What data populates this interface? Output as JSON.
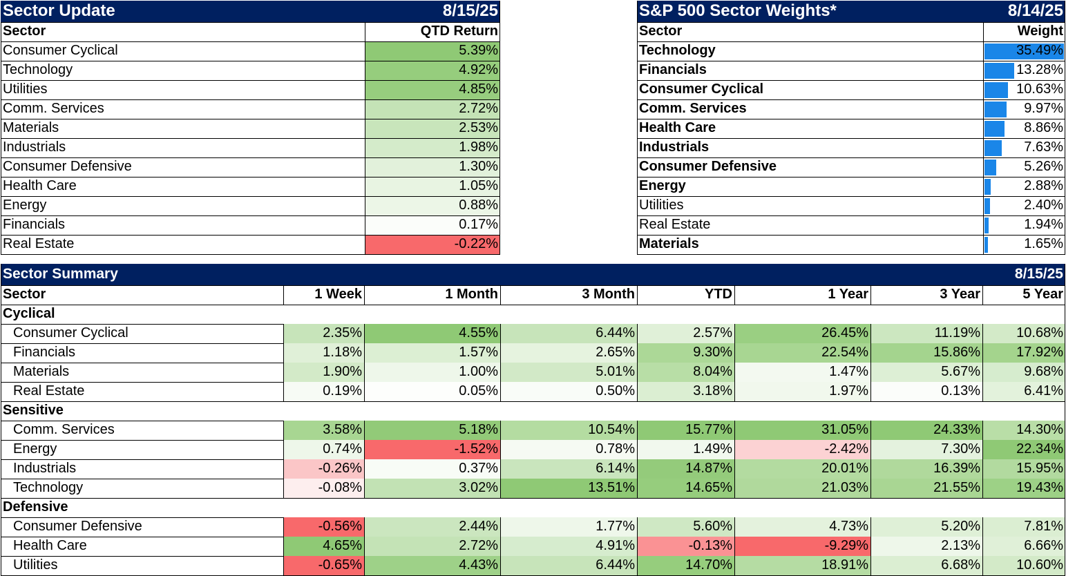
{
  "sector_update": {
    "title": "Sector Update",
    "date": "8/15/25",
    "col_sector": "Sector",
    "col_return": "QTD Return",
    "rows": [
      {
        "sector": "Consumer Cyclical",
        "value": "5.39%",
        "color": "#8fc975"
      },
      {
        "sector": "Technology",
        "value": "4.92%",
        "color": "#96cd7d"
      },
      {
        "sector": "Utilities",
        "value": "4.85%",
        "color": "#97cd7e"
      },
      {
        "sector": "Comm. Services",
        "value": "2.72%",
        "color": "#c4e3b6"
      },
      {
        "sector": "Materials",
        "value": "2.53%",
        "color": "#c8e5bb"
      },
      {
        "sector": "Industrials",
        "value": "1.98%",
        "color": "#d4ebca"
      },
      {
        "sector": "Consumer Defensive",
        "value": "1.30%",
        "color": "#e2f1db"
      },
      {
        "sector": "Health Care",
        "value": "1.05%",
        "color": "#e8f4e2"
      },
      {
        "sector": "Energy",
        "value": "0.88%",
        "color": "#ecf6e7"
      },
      {
        "sector": "Financials",
        "value": "0.17%",
        "color": "#fbfdfa"
      },
      {
        "sector": "Real Estate",
        "value": "-0.22%",
        "color": "#f8696b"
      }
    ]
  },
  "sector_weights": {
    "title": "S&P 500 Sector Weights*",
    "date": "8/14/25",
    "col_sector": "Sector",
    "col_weight": "Weight",
    "bar_color": "#1a86e8",
    "rows": [
      {
        "sector": "Technology",
        "value": "35.49%",
        "weight": 35.49,
        "bold": true
      },
      {
        "sector": "Financials",
        "value": "13.28%",
        "weight": 13.28,
        "bold": true
      },
      {
        "sector": "Consumer Cyclical",
        "value": "10.63%",
        "weight": 10.63,
        "bold": true
      },
      {
        "sector": "Comm. Services",
        "value": "9.97%",
        "weight": 9.97,
        "bold": true
      },
      {
        "sector": "Health Care",
        "value": "8.86%",
        "weight": 8.86,
        "bold": true
      },
      {
        "sector": "Industrials",
        "value": "7.63%",
        "weight": 7.63,
        "bold": true
      },
      {
        "sector": "Consumer Defensive",
        "value": "5.26%",
        "weight": 5.26,
        "bold": true
      },
      {
        "sector": "Energy",
        "value": "2.88%",
        "weight": 2.88,
        "bold": true
      },
      {
        "sector": "Utilities",
        "value": "2.40%",
        "weight": 2.4,
        "bold": false
      },
      {
        "sector": "Real Estate",
        "value": "1.94%",
        "weight": 1.94,
        "bold": false
      },
      {
        "sector": "Materials",
        "value": "1.65%",
        "weight": 1.65,
        "bold": true
      }
    ]
  },
  "sector_summary": {
    "title": "Sector Summary",
    "date": "8/15/25",
    "headers": [
      "Sector",
      "1 Week",
      "1 Month",
      "3 Month",
      "YTD",
      "1 Year",
      "3 Year",
      "5 Year"
    ],
    "groups": [
      {
        "name": "Cyclical",
        "rows": [
          {
            "sector": "Consumer Cyclical",
            "values": [
              "2.35%",
              "4.55%",
              "6.44%",
              "2.57%",
              "26.45%",
              "11.19%",
              "10.68%"
            ],
            "colors": [
              "#c7e4ba",
              "#8fc975",
              "#c7e4ba",
              "#e0f0d8",
              "#9acf82",
              "#cce7c0",
              "#d3eac8"
            ]
          },
          {
            "sector": "Financials",
            "values": [
              "1.18%",
              "1.57%",
              "2.65%",
              "9.30%",
              "22.54%",
              "15.86%",
              "17.92%"
            ],
            "colors": [
              "#e0f0d8",
              "#dcefd3",
              "#e6f3df",
              "#acd897",
              "#a8d692",
              "#a4d48e",
              "#a4d48d"
            ]
          },
          {
            "sector": "Materials",
            "values": [
              "1.90%",
              "1.00%",
              "5.01%",
              "8.04%",
              "1.47%",
              "5.67%",
              "9.68%"
            ],
            "colors": [
              "#d3eac8",
              "#eef7ea",
              "#d2e9c7",
              "#b8deA6",
              "#f3f9f0",
              "#ddefd5",
              "#d6ecce"
            ]
          },
          {
            "sector": "Real Estate",
            "values": [
              "0.19%",
              "0.05%",
              "0.50%",
              "3.18%",
              "1.97%",
              "0.13%",
              "6.41%"
            ],
            "colors": [
              "#f7fbf5",
              "#fdfefc",
              "#f9fcf8",
              "#dbeed2",
              "#f1f8ed",
              "#fbfdfa",
              "#e3f2dc"
            ]
          }
        ]
      },
      {
        "name": "Sensitive",
        "rows": [
          {
            "sector": "Comm. Services",
            "values": [
              "3.58%",
              "5.18%",
              "10.54%",
              "15.77%",
              "31.05%",
              "24.33%",
              "14.30%"
            ],
            "colors": [
              "#a8d692",
              "#92ca78",
              "#b4dca1",
              "#8fc975",
              "#8fc975",
              "#8fc975",
              "#b9dea7"
            ]
          },
          {
            "sector": "Energy",
            "values": [
              "0.74%",
              "-1.52%",
              "0.78%",
              "1.49%",
              "-2.42%",
              "7.30%",
              "22.34%"
            ],
            "colors": [
              "#eef7ea",
              "#f8696b",
              "#f6faf3",
              "#f1f8ee",
              "#fcd2d3",
              "#e4f2de",
              "#8fc975"
            ]
          },
          {
            "sector": "Industrials",
            "values": [
              "-0.26%",
              "0.37%",
              "6.14%",
              "14.87%",
              "20.01%",
              "16.39%",
              "15.95%"
            ],
            "colors": [
              "#fbc6c7",
              "#f8fcf6",
              "#c9e5bd",
              "#94cb7b",
              "#b3dba0",
              "#b0d99c",
              "#b2da9f"
            ]
          },
          {
            "sector": "Technology",
            "values": [
              "-0.08%",
              "3.02%",
              "13.51%",
              "14.65%",
              "21.03%",
              "21.55%",
              "19.43%"
            ],
            "colors": [
              "#fdeeee",
              "#c2e2b4",
              "#8fc975",
              "#96cd7d",
              "#b0d99c",
              "#a9d693",
              "#9dd186"
            ]
          }
        ]
      },
      {
        "name": "Defensive",
        "rows": [
          {
            "sector": "Consumer Defensive",
            "values": [
              "-0.56%",
              "2.44%",
              "1.77%",
              "5.60%",
              "4.73%",
              "5.20%",
              "7.81%"
            ],
            "colors": [
              "#f8696b",
              "#cbe6bf",
              "#eef7ea",
              "#cfe8c4",
              "#e4f2dd",
              "#dff0d7",
              "#dbeed2"
            ]
          },
          {
            "sector": "Health Care",
            "values": [
              "4.65%",
              "2.72%",
              "4.91%",
              "-0.13%",
              "-9.29%",
              "2.13%",
              "6.66%"
            ],
            "colors": [
              "#8fc975",
              "#c4e3b6",
              "#d6ecce",
              "#fa9294",
              "#f8696b",
              "#eef7ea",
              "#e0f0d8"
            ]
          },
          {
            "sector": "Utilities",
            "values": [
              "-0.65%",
              "4.43%",
              "6.44%",
              "14.70%",
              "18.91%",
              "6.68%",
              "10.60%"
            ],
            "colors": [
              "#f8696b",
              "#9ed188",
              "#c7e4ba",
              "#96cd7d",
              "#b5dca3",
              "#dbeed2",
              "#d3eac8"
            ]
          }
        ]
      }
    ]
  }
}
